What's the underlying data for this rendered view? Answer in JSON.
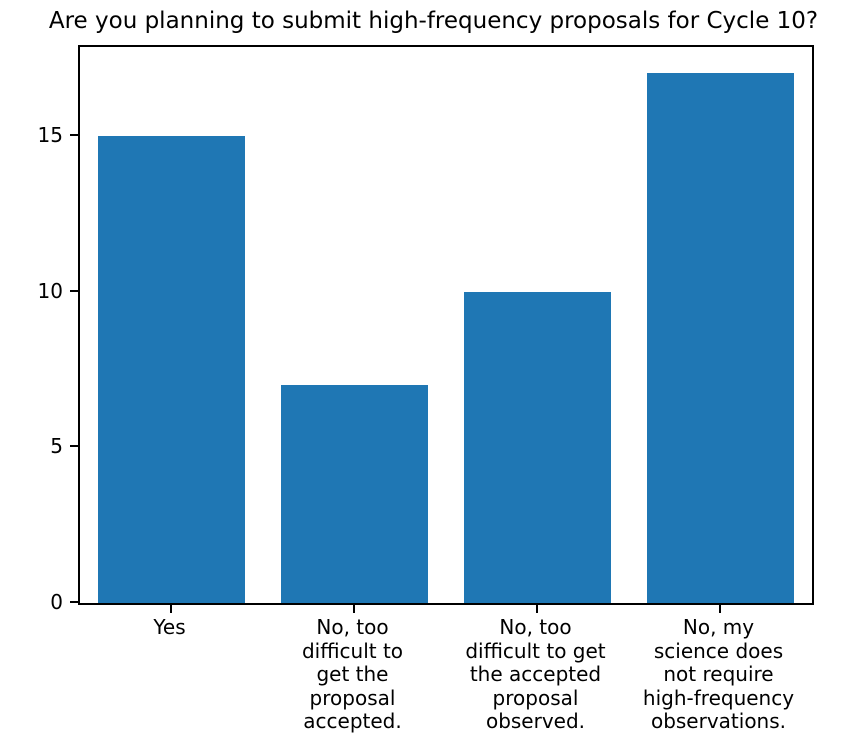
{
  "chart_data": {
    "type": "bar",
    "title": "Are you planning to submit high-frequency proposals for Cycle 10?",
    "categories": [
      "Yes",
      "No, too\ndifficult to\nget the\nproposal\naccepted.",
      "No, too\ndifficult to get\nthe accepted\nproposal\nobserved.",
      "No, my\nscience does\nnot require\nhigh-frequency\nobservations."
    ],
    "values": [
      15,
      7,
      10,
      17
    ],
    "yticks": [
      0,
      5,
      10,
      15
    ],
    "ylim": [
      0,
      17.85
    ],
    "bar_color": "#1f77b4",
    "bar_width_fraction": 0.8,
    "xlabel": "",
    "ylabel": "",
    "grid": false,
    "legend": null
  }
}
